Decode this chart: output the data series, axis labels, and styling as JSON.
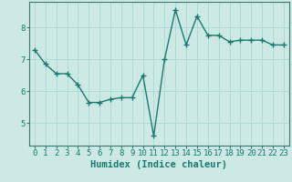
{
  "x": [
    0,
    1,
    2,
    3,
    4,
    5,
    6,
    7,
    8,
    9,
    10,
    11,
    12,
    13,
    14,
    15,
    16,
    17,
    18,
    19,
    20,
    21,
    22,
    23
  ],
  "y": [
    7.3,
    6.85,
    6.55,
    6.55,
    6.2,
    5.65,
    5.65,
    5.75,
    5.8,
    5.8,
    6.5,
    4.6,
    7.0,
    8.55,
    7.45,
    8.35,
    7.75,
    7.75,
    7.55,
    7.6,
    7.6,
    7.6,
    7.45,
    7.45
  ],
  "line_color": "#1a7a6e",
  "marker": "+",
  "marker_size": 4,
  "bg_color": "#cce9e5",
  "grid_color": "#aad8d3",
  "xlabel": "Humidex (Indice chaleur)",
  "xlim": [
    -0.5,
    23.5
  ],
  "ylim": [
    4.3,
    8.8
  ],
  "yticks": [
    5,
    6,
    7,
    8
  ],
  "xticks": [
    0,
    1,
    2,
    3,
    4,
    5,
    6,
    7,
    8,
    9,
    10,
    11,
    12,
    13,
    14,
    15,
    16,
    17,
    18,
    19,
    20,
    21,
    22,
    23
  ],
  "tick_fontsize": 6.5,
  "xlabel_fontsize": 7.5,
  "linewidth": 1.0,
  "spine_color": "#3a7a70"
}
